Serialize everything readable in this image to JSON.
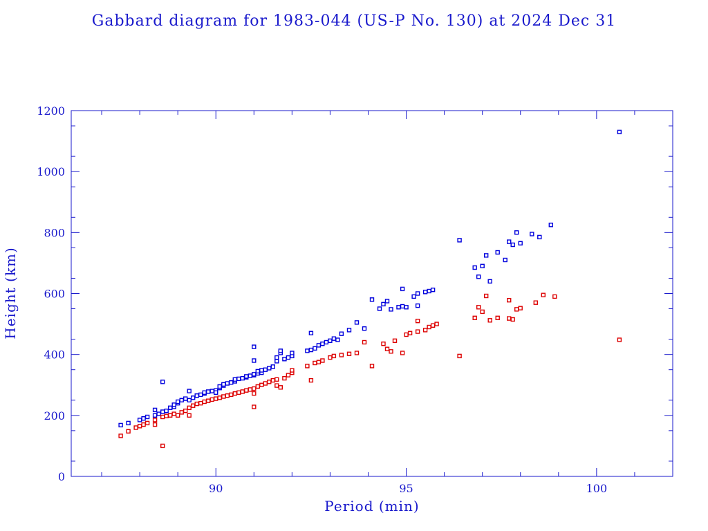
{
  "chart_data": {
    "type": "scatter",
    "title": "Gabbard diagram for 1983-044 (US-P No. 130) at 2024 Dec 31",
    "xlabel": "Period (min)",
    "ylabel": "Height (km)",
    "xlim": [
      86.2,
      102
    ],
    "ylim": [
      0,
      1200
    ],
    "x_major_ticks": [
      90,
      95,
      100
    ],
    "x_minor_ticks": [
      87,
      88,
      89,
      91,
      92,
      93,
      94,
      96,
      97,
      98,
      99,
      101
    ],
    "y_major_ticks": [
      0,
      200,
      400,
      600,
      800,
      1000,
      1200
    ],
    "x_tick_labels": [
      "90",
      "95",
      "100"
    ],
    "y_tick_labels": [
      "0",
      "200",
      "400",
      "600",
      "800",
      "1000",
      "1200"
    ],
    "grid": false,
    "legend": "none",
    "series": [
      {
        "color": "#0000dd",
        "points": [
          [
            87.5,
            168
          ],
          [
            87.7,
            175
          ],
          [
            88.0,
            185
          ],
          [
            88.1,
            190
          ],
          [
            88.2,
            195
          ],
          [
            88.4,
            200
          ],
          [
            88.4,
            218
          ],
          [
            88.5,
            205
          ],
          [
            88.6,
            310
          ],
          [
            88.6,
            212
          ],
          [
            88.7,
            215
          ],
          [
            88.8,
            225
          ],
          [
            88.9,
            228
          ],
          [
            88.9,
            235
          ],
          [
            89.0,
            240
          ],
          [
            89.0,
            245
          ],
          [
            89.1,
            250
          ],
          [
            89.2,
            255
          ],
          [
            89.3,
            250
          ],
          [
            89.3,
            280
          ],
          [
            89.4,
            258
          ],
          [
            89.5,
            265
          ],
          [
            89.6,
            268
          ],
          [
            89.7,
            272
          ],
          [
            89.7,
            275
          ],
          [
            89.8,
            278
          ],
          [
            89.9,
            280
          ],
          [
            90.0,
            282
          ],
          [
            90.0,
            275
          ],
          [
            90.1,
            290
          ],
          [
            90.1,
            295
          ],
          [
            90.2,
            298
          ],
          [
            90.2,
            302
          ],
          [
            90.3,
            305
          ],
          [
            90.4,
            308
          ],
          [
            90.5,
            312
          ],
          [
            90.5,
            318
          ],
          [
            90.6,
            320
          ],
          [
            90.7,
            322
          ],
          [
            90.8,
            325
          ],
          [
            90.8,
            328
          ],
          [
            90.9,
            330
          ],
          [
            91.0,
            332
          ],
          [
            91.0,
            335
          ],
          [
            91.1,
            338
          ],
          [
            91.1,
            345
          ],
          [
            91.2,
            340
          ],
          [
            91.2,
            348
          ],
          [
            91.3,
            350
          ],
          [
            91.4,
            355
          ],
          [
            91.5,
            360
          ],
          [
            91.6,
            378
          ],
          [
            91.6,
            390
          ],
          [
            91.7,
            405
          ],
          [
            91.7,
            412
          ],
          [
            91.8,
            385
          ],
          [
            91.9,
            390
          ],
          [
            92.0,
            395
          ],
          [
            92.0,
            405
          ],
          [
            91.0,
            425
          ],
          [
            91.0,
            380
          ],
          [
            92.4,
            412
          ],
          [
            92.5,
            415
          ],
          [
            92.5,
            470
          ],
          [
            92.6,
            420
          ],
          [
            92.7,
            430
          ],
          [
            92.8,
            435
          ],
          [
            92.9,
            440
          ],
          [
            93.0,
            445
          ],
          [
            93.1,
            452
          ],
          [
            93.2,
            448
          ],
          [
            93.3,
            468
          ],
          [
            93.5,
            480
          ],
          [
            93.7,
            505
          ],
          [
            93.9,
            485
          ],
          [
            94.1,
            580
          ],
          [
            94.3,
            550
          ],
          [
            94.4,
            565
          ],
          [
            94.5,
            575
          ],
          [
            94.6,
            548
          ],
          [
            94.8,
            555
          ],
          [
            94.9,
            558
          ],
          [
            94.9,
            615
          ],
          [
            95.0,
            555
          ],
          [
            95.2,
            590
          ],
          [
            95.3,
            600
          ],
          [
            95.3,
            560
          ],
          [
            95.5,
            605
          ],
          [
            95.6,
            608
          ],
          [
            95.7,
            612
          ],
          [
            96.4,
            775
          ],
          [
            96.8,
            685
          ],
          [
            96.9,
            655
          ],
          [
            97.0,
            690
          ],
          [
            97.1,
            725
          ],
          [
            97.2,
            640
          ],
          [
            97.4,
            735
          ],
          [
            97.6,
            710
          ],
          [
            97.7,
            770
          ],
          [
            97.8,
            760
          ],
          [
            97.9,
            800
          ],
          [
            98.0,
            765
          ],
          [
            98.3,
            795
          ],
          [
            98.5,
            785
          ],
          [
            98.8,
            825
          ],
          [
            100.6,
            1130
          ]
        ]
      },
      {
        "color": "#dd0000",
        "points": [
          [
            87.5,
            133
          ],
          [
            87.7,
            148
          ],
          [
            87.9,
            160
          ],
          [
            88.0,
            165
          ],
          [
            88.1,
            170
          ],
          [
            88.2,
            175
          ],
          [
            88.4,
            170
          ],
          [
            88.4,
            185
          ],
          [
            88.6,
            100
          ],
          [
            88.6,
            195
          ],
          [
            88.7,
            198
          ],
          [
            88.8,
            200
          ],
          [
            88.9,
            205
          ],
          [
            89.0,
            200
          ],
          [
            89.1,
            210
          ],
          [
            89.2,
            215
          ],
          [
            89.3,
            200
          ],
          [
            89.3,
            225
          ],
          [
            89.4,
            232
          ],
          [
            89.5,
            238
          ],
          [
            89.6,
            240
          ],
          [
            89.7,
            245
          ],
          [
            89.8,
            248
          ],
          [
            89.9,
            252
          ],
          [
            90.0,
            255
          ],
          [
            90.1,
            258
          ],
          [
            90.2,
            262
          ],
          [
            90.3,
            265
          ],
          [
            90.4,
            268
          ],
          [
            90.5,
            272
          ],
          [
            90.6,
            275
          ],
          [
            90.7,
            278
          ],
          [
            90.8,
            282
          ],
          [
            90.9,
            285
          ],
          [
            91.0,
            288
          ],
          [
            91.0,
            272
          ],
          [
            91.0,
            228
          ],
          [
            91.1,
            295
          ],
          [
            91.2,
            300
          ],
          [
            91.3,
            305
          ],
          [
            91.4,
            310
          ],
          [
            91.5,
            315
          ],
          [
            91.6,
            298
          ],
          [
            91.6,
            318
          ],
          [
            91.7,
            292
          ],
          [
            91.8,
            322
          ],
          [
            91.9,
            332
          ],
          [
            92.0,
            340
          ],
          [
            92.0,
            348
          ],
          [
            92.4,
            362
          ],
          [
            92.5,
            315
          ],
          [
            92.6,
            372
          ],
          [
            92.7,
            375
          ],
          [
            92.8,
            380
          ],
          [
            93.0,
            390
          ],
          [
            93.1,
            395
          ],
          [
            93.3,
            398
          ],
          [
            93.5,
            402
          ],
          [
            93.7,
            405
          ],
          [
            93.9,
            440
          ],
          [
            94.1,
            362
          ],
          [
            94.4,
            435
          ],
          [
            94.5,
            418
          ],
          [
            94.6,
            410
          ],
          [
            94.7,
            445
          ],
          [
            94.9,
            405
          ],
          [
            95.0,
            465
          ],
          [
            95.1,
            470
          ],
          [
            95.3,
            475
          ],
          [
            95.3,
            510
          ],
          [
            95.5,
            480
          ],
          [
            95.6,
            490
          ],
          [
            95.7,
            495
          ],
          [
            95.8,
            500
          ],
          [
            96.4,
            395
          ],
          [
            96.8,
            520
          ],
          [
            96.9,
            555
          ],
          [
            97.0,
            540
          ],
          [
            97.1,
            592
          ],
          [
            97.2,
            512
          ],
          [
            97.4,
            520
          ],
          [
            97.7,
            518
          ],
          [
            97.7,
            578
          ],
          [
            97.8,
            515
          ],
          [
            97.9,
            548
          ],
          [
            98.0,
            552
          ],
          [
            98.4,
            570
          ],
          [
            98.6,
            595
          ],
          [
            98.9,
            590
          ],
          [
            100.6,
            448
          ]
        ]
      }
    ]
  }
}
